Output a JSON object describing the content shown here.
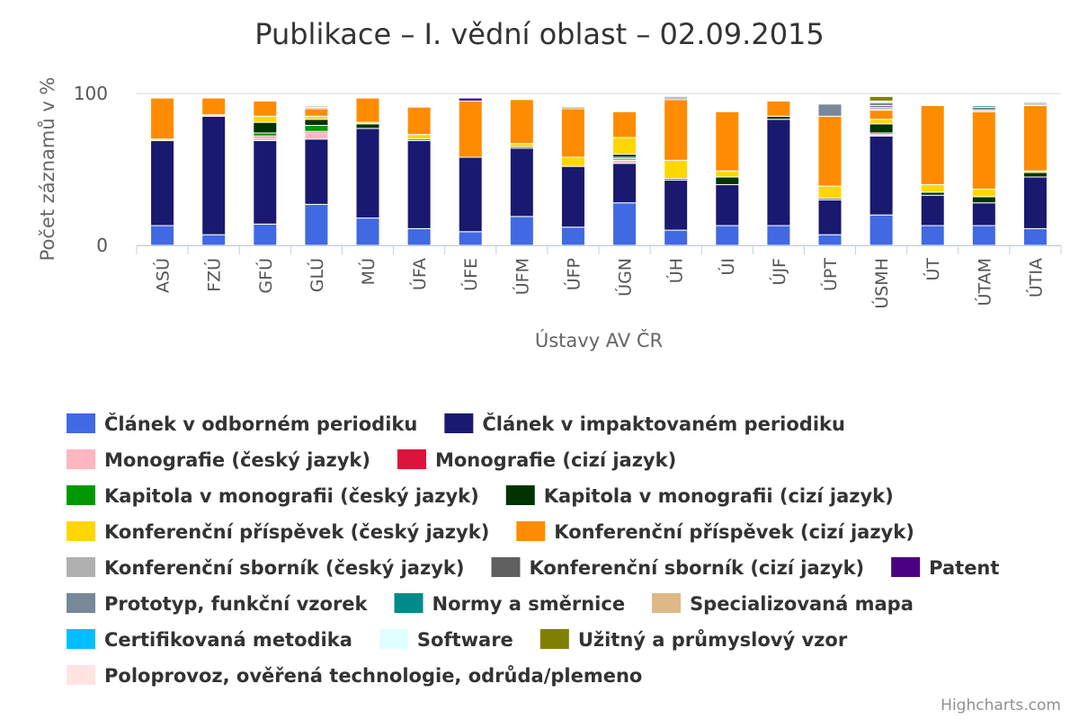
{
  "chart_data": {
    "type": "bar",
    "stacked": true,
    "title": "Publikace – I. vědní oblast – 02.09.2015",
    "xlabel": "Ústavy AV ČR",
    "ylabel": "Počet záznamů v %",
    "ylim": [
      0,
      100
    ],
    "yticks": [
      "0",
      "100"
    ],
    "grid": true,
    "legend_position": "bottom",
    "credits": "Highcharts.com",
    "categories": [
      "ASÚ",
      "FZÚ",
      "GFÚ",
      "GLÚ",
      "MÚ",
      "ÚFA",
      "ÚFE",
      "ÚFM",
      "ÚFP",
      "ÚGN",
      "ÚH",
      "ÚI",
      "ÚJF",
      "ÚPT",
      "ÚSMH",
      "ÚT",
      "ÚTAM",
      "ÚTIA"
    ],
    "series": [
      {
        "name": "Článek v odborném periodiku",
        "color": "#4169E1",
        "values": [
          13,
          7,
          14,
          27,
          18,
          11,
          9,
          19,
          12,
          28,
          10,
          13,
          13,
          7,
          20,
          13,
          13,
          11
        ]
      },
      {
        "name": "Článek v impaktovaném periodiku",
        "color": "#191970",
        "values": [
          56,
          78,
          55,
          43,
          59,
          58,
          49,
          45,
          40,
          26,
          33,
          27,
          70,
          23,
          52,
          20,
          15,
          34
        ]
      },
      {
        "name": "Monografie (český jazyk)",
        "color": "#FFB6C1",
        "values": [
          0,
          0,
          2,
          4,
          0,
          0,
          0,
          0,
          0,
          2,
          0,
          0,
          0,
          0,
          1,
          0,
          0,
          0
        ]
      },
      {
        "name": "Monografie (cizí jazyk)",
        "color": "#DC143C",
        "values": [
          0,
          0,
          1,
          1,
          0,
          0,
          0,
          0,
          0,
          1,
          0,
          0,
          0,
          0,
          1,
          0,
          0,
          0
        ]
      },
      {
        "name": "Kapitola v monografii (český jazyk)",
        "color": "#009900",
        "values": [
          0,
          0,
          2,
          4,
          0,
          0,
          0,
          0,
          0,
          1,
          0,
          0,
          0,
          0,
          0,
          0,
          0,
          0
        ]
      },
      {
        "name": "Kapitola v monografii (cizí jazyk)",
        "color": "#003300",
        "values": [
          0,
          0,
          7,
          4,
          3,
          1,
          0,
          1,
          0,
          2,
          1,
          5,
          2,
          1,
          6,
          2,
          4,
          3
        ]
      },
      {
        "name": "Konferenční příspěvek (český jazyk)",
        "color": "#FFD700",
        "values": [
          1,
          1,
          4,
          2,
          1,
          3,
          0,
          2,
          6,
          11,
          12,
          4,
          0,
          8,
          3,
          5,
          5,
          1
        ]
      },
      {
        "name": "Konferenční příspěvek (cizí jazyk)",
        "color": "#FF8C00",
        "values": [
          27,
          11,
          10,
          5,
          16,
          18,
          37,
          29,
          32,
          17,
          40,
          39,
          10,
          46,
          6,
          52,
          51,
          43
        ]
      },
      {
        "name": "Konferenční sborník (český jazyk)",
        "color": "#B0B0B0",
        "values": [
          0,
          0,
          0,
          1,
          0,
          0,
          0,
          0,
          0,
          0,
          0,
          0,
          0,
          0,
          1,
          0,
          1,
          1
        ]
      },
      {
        "name": "Konferenční sborník (cizí jazyk)",
        "color": "#606060",
        "values": [
          0,
          0,
          0,
          0,
          0,
          0,
          0,
          0,
          0,
          0,
          1,
          0,
          0,
          0,
          1,
          0,
          0,
          1
        ]
      },
      {
        "name": "Patent",
        "color": "#4B0082",
        "values": [
          0,
          0,
          0,
          0,
          0,
          0,
          2,
          0,
          0,
          0,
          0,
          0,
          0,
          0,
          1,
          0,
          0,
          0
        ]
      },
      {
        "name": "Prototyp, funkční vzorek",
        "color": "#778899",
        "values": [
          0,
          0,
          0,
          0,
          0,
          0,
          0,
          0,
          0,
          0,
          1,
          0,
          0,
          8,
          2,
          0,
          2,
          0
        ]
      },
      {
        "name": "Normy a směrnice",
        "color": "#008B8B",
        "values": [
          0,
          0,
          0,
          0,
          0,
          0,
          0,
          0,
          0,
          0,
          0,
          0,
          0,
          0,
          0,
          0,
          1,
          0
        ]
      },
      {
        "name": "Specializovaná mapa",
        "color": "#DEB887",
        "values": [
          0,
          0,
          0,
          1,
          0,
          0,
          0,
          0,
          0,
          0,
          0,
          0,
          0,
          0,
          0,
          0,
          0,
          0
        ]
      },
      {
        "name": "Certifikovaná metodika",
        "color": "#00BFFF",
        "values": [
          0,
          0,
          0,
          0,
          0,
          0,
          0,
          0,
          0,
          0,
          0,
          0,
          0,
          0,
          0,
          0,
          0,
          0
        ]
      },
      {
        "name": "Software",
        "color": "#E0FFFF",
        "values": [
          0,
          0,
          0,
          1,
          0,
          0,
          0,
          0,
          0,
          0,
          0,
          0,
          0,
          0,
          1,
          0,
          0,
          1
        ]
      },
      {
        "name": "Užitný a průmyslový vzor",
        "color": "#808000",
        "values": [
          0,
          0,
          0,
          0,
          0,
          0,
          0,
          0,
          1,
          0,
          0,
          0,
          0,
          0,
          3,
          0,
          0,
          0
        ]
      },
      {
        "name": "Poloprovoz, ověřená technologie, odrůda/plemeno",
        "color": "#FFE4E1",
        "values": [
          0,
          0,
          0,
          0,
          0,
          0,
          0,
          0,
          0,
          0,
          0,
          0,
          0,
          0,
          0,
          0,
          0,
          0
        ]
      }
    ]
  }
}
